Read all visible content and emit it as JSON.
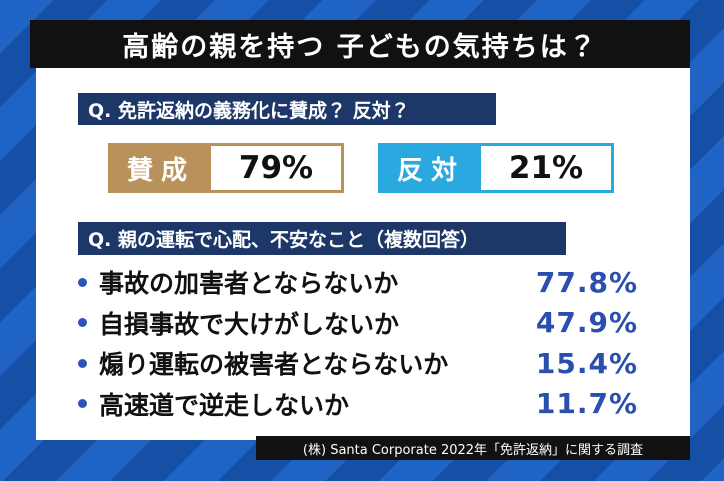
{
  "title": "高齢の親を持つ 子どもの気持ちは？",
  "question1": {
    "label": "Q. 免許返納の義務化に賛成？ 反対？",
    "options": [
      {
        "label": "賛成",
        "value": "79%"
      },
      {
        "label": "反対",
        "value": "21%"
      }
    ]
  },
  "question2": {
    "label": "Q. 親の運転で心配、不安なこと（複数回答）",
    "items": [
      {
        "text": "事故の加害者とならないか",
        "value": "77.8%"
      },
      {
        "text": "自損事故で大けがしないか",
        "value": "47.9%"
      },
      {
        "text": "煽り運転の被害者とならないか",
        "value": "15.4%"
      },
      {
        "text": "高速道で逆走しないか",
        "value": "11.7%"
      }
    ]
  },
  "source": "(株) Santa Corporate 2022年「免許返納」に関する調査"
}
